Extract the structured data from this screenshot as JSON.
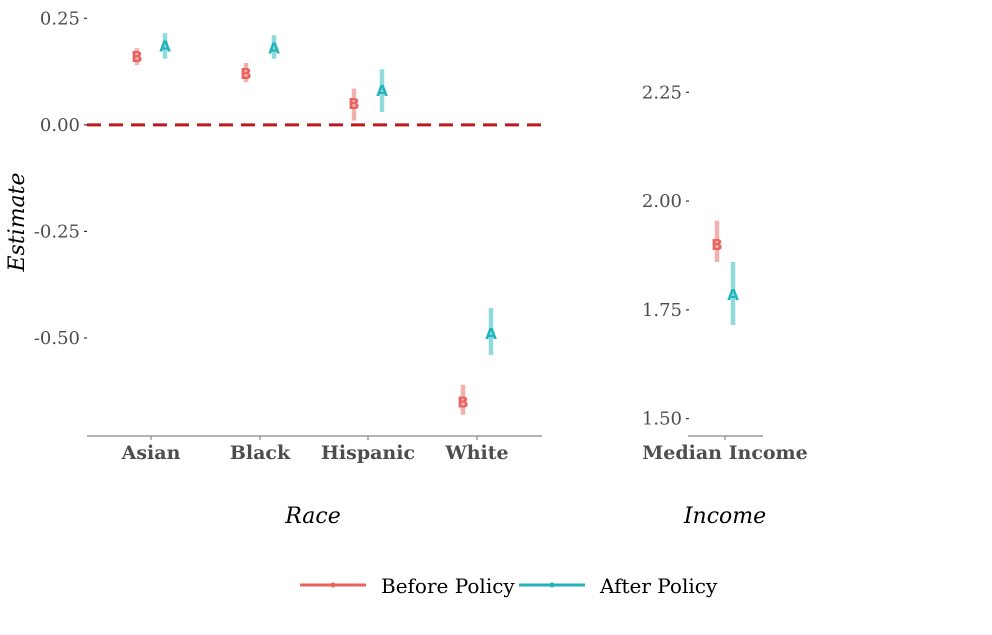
{
  "colors": {
    "before": "#e8635e",
    "after": "#21b5bb",
    "zero_line": "#c0171d",
    "axis": "#888888",
    "text": "#4d4d4d"
  },
  "legend": {
    "before_label": "Before Policy",
    "after_label": "After Policy",
    "placement": "bottom"
  },
  "chart_data": [
    {
      "type": "scatter",
      "panel": "race",
      "xlabel": "Race",
      "ylabel": "Estimate",
      "categories": [
        "Asian",
        "Black",
        "Hispanic",
        "White"
      ],
      "ylim": [
        -0.73,
        0.26
      ],
      "yticks": [
        0.25,
        0.0,
        -0.25,
        -0.5
      ],
      "ytick_labels": [
        "0.25",
        "0.00",
        "-0.25",
        "-0.50"
      ],
      "reference_line": 0,
      "series": [
        {
          "name": "Before Policy",
          "marker": "B",
          "values": [
            0.16,
            0.12,
            0.05,
            -0.65
          ],
          "ci_low": [
            0.14,
            0.1,
            0.01,
            -0.68
          ],
          "ci_high": [
            0.18,
            0.145,
            0.085,
            -0.61
          ]
        },
        {
          "name": "After Policy",
          "marker": "A",
          "values": [
            0.185,
            0.18,
            0.08,
            -0.49
          ],
          "ci_low": [
            0.155,
            0.155,
            0.03,
            -0.54
          ],
          "ci_high": [
            0.215,
            0.21,
            0.13,
            -0.43
          ]
        }
      ]
    },
    {
      "type": "scatter",
      "panel": "income",
      "xlabel": "Income",
      "ylabel": "",
      "categories": [
        "Median Income"
      ],
      "ylim": [
        1.46,
        2.43
      ],
      "yticks": [
        2.25,
        2.0,
        1.75,
        1.5
      ],
      "ytick_labels": [
        "2.25",
        "2.00",
        "1.75",
        "1.50"
      ],
      "series": [
        {
          "name": "Before Policy",
          "marker": "B",
          "values": [
            1.9
          ],
          "ci_low": [
            1.86
          ],
          "ci_high": [
            1.955
          ]
        },
        {
          "name": "After Policy",
          "marker": "A",
          "values": [
            1.785
          ],
          "ci_low": [
            1.715
          ],
          "ci_high": [
            1.86
          ]
        }
      ]
    }
  ]
}
